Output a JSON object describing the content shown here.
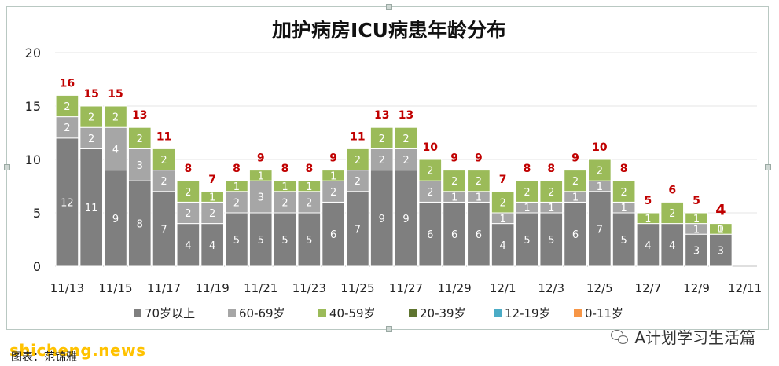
{
  "chart_data": {
    "type": "bar",
    "stacked": true,
    "title": "加护病房ICU病患年龄分布",
    "categories": [
      "11/13",
      "11/14",
      "11/15",
      "11/16",
      "11/17",
      "11/18",
      "11/19",
      "11/20",
      "11/21",
      "11/22",
      "11/23",
      "11/24",
      "11/25",
      "11/26",
      "11/27",
      "11/28",
      "11/29",
      "11/30",
      "12/1",
      "12/2",
      "12/3",
      "12/4",
      "12/5",
      "12/6",
      "12/7",
      "12/8",
      "12/9",
      "12/10"
    ],
    "x_tick_labels": [
      "11/13",
      "11/15",
      "11/17",
      "11/19",
      "11/21",
      "11/23",
      "11/25",
      "11/27",
      "11/29",
      "12/1",
      "12/3",
      "12/5",
      "12/7",
      "12/9",
      "12/11"
    ],
    "series": [
      {
        "name": "70岁以上",
        "color": "#7f7f7f",
        "values": [
          12,
          11,
          9,
          8,
          7,
          4,
          4,
          5,
          5,
          5,
          5,
          6,
          7,
          9,
          9,
          6,
          6,
          6,
          4,
          5,
          5,
          6,
          7,
          5,
          4,
          4,
          3,
          3
        ]
      },
      {
        "name": "60-69岁",
        "color": "#a6a6a6",
        "values": [
          2,
          2,
          4,
          3,
          2,
          2,
          2,
          2,
          3,
          2,
          2,
          2,
          2,
          2,
          2,
          2,
          1,
          1,
          1,
          1,
          1,
          1,
          1,
          1,
          0,
          0,
          1,
          0
        ]
      },
      {
        "name": "40-59岁",
        "color": "#9bbb59",
        "values": [
          2,
          2,
          2,
          2,
          2,
          2,
          1,
          1,
          1,
          1,
          1,
          1,
          2,
          2,
          2,
          2,
          2,
          2,
          2,
          2,
          2,
          2,
          2,
          2,
          1,
          2,
          1,
          1
        ]
      },
      {
        "name": "20-39岁",
        "color": "#5f7530",
        "values": [
          0,
          0,
          0,
          0,
          0,
          0,
          0,
          0,
          0,
          0,
          0,
          0,
          0,
          0,
          0,
          0,
          0,
          0,
          0,
          0,
          0,
          0,
          0,
          0,
          0,
          0,
          0,
          0
        ]
      },
      {
        "name": "12-19岁",
        "color": "#4bacc6",
        "values": [
          0,
          0,
          0,
          0,
          0,
          0,
          0,
          0,
          0,
          0,
          0,
          0,
          0,
          0,
          0,
          0,
          0,
          0,
          0,
          0,
          0,
          0,
          0,
          0,
          0,
          0,
          0,
          0
        ]
      },
      {
        "name": "0-11岁",
        "color": "#f79646",
        "values": [
          0,
          0,
          0,
          0,
          0,
          0,
          0,
          0,
          0,
          0,
          0,
          0,
          0,
          0,
          0,
          0,
          0,
          0,
          0,
          0,
          0,
          0,
          0,
          0,
          0,
          0,
          0,
          0
        ]
      }
    ],
    "totals": [
      16,
      15,
      15,
      13,
      11,
      8,
      7,
      8,
      9,
      8,
      8,
      9,
      11,
      13,
      13,
      10,
      9,
      9,
      7,
      8,
      8,
      9,
      10,
      8,
      5,
      6,
      5,
      4
    ],
    "ylim": [
      0,
      20
    ],
    "y_ticks": [
      0,
      5,
      10,
      15,
      20
    ],
    "grid": true,
    "legend_position": "bottom",
    "total_label_color": "#c00000"
  },
  "overlay": {
    "site": "shicheng.news",
    "source": "图表：范锦雅",
    "watermark": "A计划学习生活篇"
  }
}
